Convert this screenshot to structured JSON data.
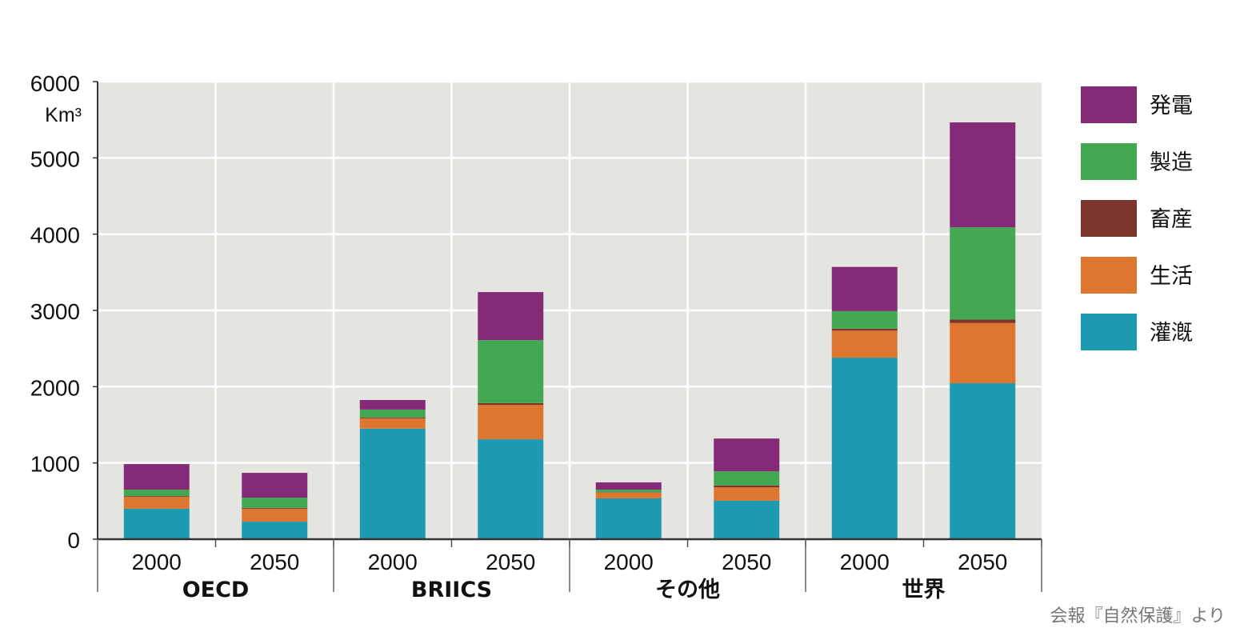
{
  "chart_data": {
    "type": "stacked-bar",
    "unit": "Km³",
    "ylim": [
      0,
      6000
    ],
    "yticks": [
      0,
      1000,
      2000,
      3000,
      4000,
      5000,
      6000
    ],
    "grid": true,
    "legend_position": "right",
    "groups": [
      "OECD",
      "BRIICS",
      "その他",
      "世界"
    ],
    "categories": [
      "2000",
      "2050",
      "2000",
      "2050",
      "2000",
      "2050",
      "2000",
      "2050"
    ],
    "series": [
      {
        "name": "灌漑",
        "color": "#1c9ab1",
        "values": [
          400,
          230,
          1450,
          1310,
          535,
          505,
          2380,
          2045
        ]
      },
      {
        "name": "生活",
        "color": "#de7630",
        "values": [
          155,
          170,
          135,
          450,
          75,
          175,
          355,
          790
        ]
      },
      {
        "name": "畜産",
        "color": "#7c352b",
        "values": [
          10,
          10,
          10,
          25,
          5,
          25,
          25,
          45
        ]
      },
      {
        "name": "製造",
        "color": "#44a853",
        "values": [
          85,
          135,
          105,
          825,
          35,
          185,
          230,
          1210
        ]
      },
      {
        "name": "発電",
        "color": "#852a76",
        "values": [
          335,
          325,
          125,
          630,
          95,
          430,
          580,
          1375
        ]
      }
    ]
  },
  "source": "会報『自然保護』より"
}
